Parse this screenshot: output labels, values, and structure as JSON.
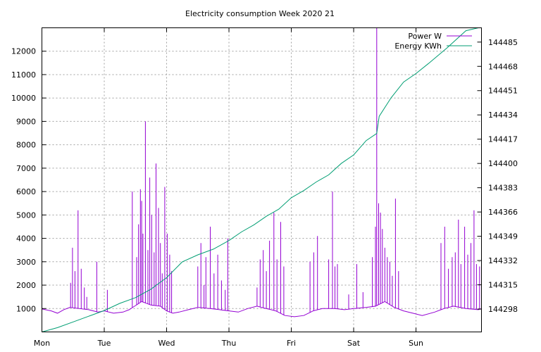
{
  "chart_data": {
    "type": "line",
    "title": "Electricity consumption Week 2020 21",
    "xlabel": "",
    "ylabel": "",
    "y2label": "",
    "x_ticks": [
      "Mon",
      "Tue",
      "Wed",
      "Thu",
      "Fri",
      "Sat",
      "Sun"
    ],
    "xlim_days": [
      0,
      7.05
    ],
    "ylim": [
      0,
      13000
    ],
    "y_ticks": [
      1000,
      2000,
      3000,
      4000,
      5000,
      6000,
      7000,
      8000,
      9000,
      10000,
      11000,
      12000
    ],
    "y2lim": [
      144282,
      144495
    ],
    "y2_ticks": [
      144298,
      144315,
      144332,
      144349,
      144366,
      144383,
      144400,
      144417,
      144434,
      144451,
      144468,
      144485
    ],
    "grid": true,
    "legend_position": "top-right",
    "series": [
      {
        "name": "Power W",
        "color": "#9400d3",
        "axis": "y1",
        "baseline": [
          [
            0.0,
            980
          ],
          [
            0.15,
            900
          ],
          [
            0.25,
            800
          ],
          [
            0.35,
            950
          ],
          [
            0.45,
            1050
          ],
          [
            0.6,
            1000
          ],
          [
            0.75,
            950
          ],
          [
            0.9,
            850
          ],
          [
            1.0,
            900
          ],
          [
            1.15,
            800
          ],
          [
            1.3,
            850
          ],
          [
            1.4,
            950
          ],
          [
            1.6,
            1300
          ],
          [
            1.75,
            1150
          ],
          [
            1.9,
            1100
          ],
          [
            2.0,
            900
          ],
          [
            2.1,
            800
          ],
          [
            2.2,
            850
          ],
          [
            2.35,
            950
          ],
          [
            2.5,
            1050
          ],
          [
            2.7,
            1000
          ],
          [
            2.85,
            950
          ],
          [
            3.0,
            900
          ],
          [
            3.15,
            850
          ],
          [
            3.3,
            1000
          ],
          [
            3.45,
            1100
          ],
          [
            3.6,
            1000
          ],
          [
            3.75,
            900
          ],
          [
            3.9,
            700
          ],
          [
            4.05,
            650
          ],
          [
            4.2,
            700
          ],
          [
            4.35,
            900
          ],
          [
            4.5,
            1000
          ],
          [
            4.7,
            1000
          ],
          [
            4.85,
            950
          ],
          [
            5.0,
            1000
          ],
          [
            5.2,
            1050
          ],
          [
            5.35,
            1100
          ],
          [
            5.5,
            1300
          ],
          [
            5.65,
            1050
          ],
          [
            5.8,
            900
          ],
          [
            5.95,
            800
          ],
          [
            6.1,
            700
          ],
          [
            6.3,
            850
          ],
          [
            6.45,
            1000
          ],
          [
            6.6,
            1100
          ],
          [
            6.8,
            1000
          ],
          [
            7.0,
            950
          ],
          [
            7.05,
            1000
          ]
        ],
        "spikes": [
          [
            0.46,
            2100
          ],
          [
            0.49,
            3600
          ],
          [
            0.53,
            2600
          ],
          [
            0.58,
            5200
          ],
          [
            0.63,
            2700
          ],
          [
            0.68,
            1900
          ],
          [
            0.72,
            1500
          ],
          [
            0.88,
            3000
          ],
          [
            1.05,
            1800
          ],
          [
            1.45,
            6000
          ],
          [
            1.52,
            3200
          ],
          [
            1.55,
            4600
          ],
          [
            1.58,
            6100
          ],
          [
            1.6,
            5600
          ],
          [
            1.62,
            4200
          ],
          [
            1.66,
            9000
          ],
          [
            1.7,
            3500
          ],
          [
            1.73,
            6600
          ],
          [
            1.76,
            5000
          ],
          [
            1.8,
            3400
          ],
          [
            1.83,
            7200
          ],
          [
            1.87,
            5300
          ],
          [
            1.9,
            3800
          ],
          [
            1.93,
            2500
          ],
          [
            1.97,
            6200
          ],
          [
            2.01,
            4200
          ],
          [
            2.05,
            3300
          ],
          [
            2.08,
            2600
          ],
          [
            2.5,
            2800
          ],
          [
            2.55,
            3800
          ],
          [
            2.6,
            2000
          ],
          [
            2.63,
            3200
          ],
          [
            2.7,
            4500
          ],
          [
            2.76,
            2500
          ],
          [
            2.82,
            3300
          ],
          [
            2.88,
            2200
          ],
          [
            2.94,
            1800
          ],
          [
            2.98,
            4000
          ],
          [
            3.45,
            1900
          ],
          [
            3.5,
            3100
          ],
          [
            3.55,
            3500
          ],
          [
            3.6,
            2600
          ],
          [
            3.65,
            3900
          ],
          [
            3.72,
            5100
          ],
          [
            3.77,
            3100
          ],
          [
            3.83,
            4700
          ],
          [
            3.88,
            2800
          ],
          [
            4.3,
            3000
          ],
          [
            4.36,
            3400
          ],
          [
            4.42,
            4100
          ],
          [
            4.6,
            3100
          ],
          [
            4.66,
            6000
          ],
          [
            4.7,
            2800
          ],
          [
            4.74,
            2900
          ],
          [
            4.92,
            1600
          ],
          [
            5.05,
            2900
          ],
          [
            5.15,
            1700
          ],
          [
            5.3,
            3200
          ],
          [
            5.35,
            4500
          ],
          [
            5.37,
            13000
          ],
          [
            5.4,
            5500
          ],
          [
            5.43,
            5100
          ],
          [
            5.46,
            4400
          ],
          [
            5.5,
            3600
          ],
          [
            5.54,
            3200
          ],
          [
            5.58,
            3000
          ],
          [
            5.62,
            2400
          ],
          [
            5.67,
            5700
          ],
          [
            5.72,
            2600
          ],
          [
            6.4,
            3800
          ],
          [
            6.46,
            4500
          ],
          [
            6.52,
            2700
          ],
          [
            6.58,
            3200
          ],
          [
            6.63,
            3400
          ],
          [
            6.68,
            4800
          ],
          [
            6.72,
            2900
          ],
          [
            6.78,
            4500
          ],
          [
            6.83,
            3300
          ],
          [
            6.88,
            3800
          ],
          [
            6.93,
            5200
          ],
          [
            6.97,
            2900
          ],
          [
            7.02,
            2800
          ]
        ]
      },
      {
        "name": "Energy KWh",
        "color": "#009e73",
        "axis": "y2",
        "points": [
          [
            0.0,
            144282
          ],
          [
            0.25,
            144285
          ],
          [
            0.5,
            144289
          ],
          [
            0.75,
            144293
          ],
          [
            1.0,
            144297
          ],
          [
            1.25,
            144302
          ],
          [
            1.5,
            144306
          ],
          [
            1.75,
            144312
          ],
          [
            2.0,
            144320
          ],
          [
            2.25,
            144331
          ],
          [
            2.5,
            144336
          ],
          [
            2.75,
            144340
          ],
          [
            3.0,
            144346
          ],
          [
            3.2,
            144352
          ],
          [
            3.4,
            144357
          ],
          [
            3.6,
            144363
          ],
          [
            3.8,
            144368
          ],
          [
            4.0,
            144376
          ],
          [
            4.2,
            144381
          ],
          [
            4.4,
            144387
          ],
          [
            4.6,
            144392
          ],
          [
            4.8,
            144400
          ],
          [
            5.0,
            144406
          ],
          [
            5.2,
            144416
          ],
          [
            5.37,
            144421
          ],
          [
            5.41,
            144433
          ],
          [
            5.6,
            144446
          ],
          [
            5.8,
            144457
          ],
          [
            6.0,
            144463
          ],
          [
            6.2,
            144470
          ],
          [
            6.5,
            144481
          ],
          [
            6.8,
            144493
          ],
          [
            7.0,
            144500
          ]
        ]
      }
    ]
  }
}
